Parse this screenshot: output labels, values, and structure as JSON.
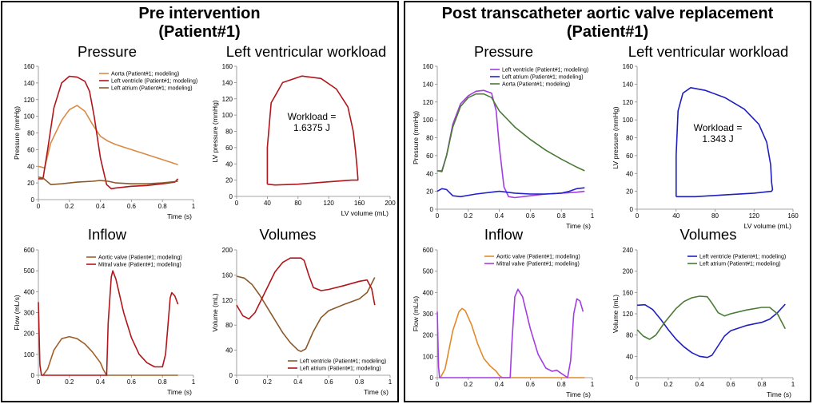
{
  "headings": {
    "pre": "Pre intervention\n(Patient#1)",
    "post": "Post transcatheter aortic valve replacement\n(Patient#1)"
  },
  "chart_data": [
    {
      "id": "pre-pressure",
      "type": "line",
      "title": "Pressure",
      "xlabel": "Time (s)",
      "ylabel": "Pressure (mmHg)",
      "xlim": [
        0,
        1
      ],
      "ylim": [
        0,
        160
      ],
      "xticks": [
        0,
        0.2,
        0.4,
        0.6,
        0.8,
        1
      ],
      "yticks": [
        0,
        20,
        40,
        60,
        80,
        100,
        120,
        140,
        160
      ],
      "series": [
        {
          "name": "Aorta (Patient#1; modeling)",
          "color": "#d98a45",
          "x": [
            0,
            0.04,
            0.08,
            0.15,
            0.2,
            0.25,
            0.3,
            0.35,
            0.4,
            0.45,
            0.5,
            0.6,
            0.7,
            0.8,
            0.9
          ],
          "y": [
            40,
            38,
            68,
            95,
            108,
            113,
            106,
            90,
            76,
            70,
            66,
            60,
            54,
            48,
            42
          ]
        },
        {
          "name": "Left ventricle (Patient#1; modeling)",
          "color": "#b0161c",
          "x": [
            0,
            0.03,
            0.06,
            0.1,
            0.15,
            0.2,
            0.25,
            0.3,
            0.33,
            0.36,
            0.4,
            0.44,
            0.47,
            0.5,
            0.6,
            0.7,
            0.8,
            0.88,
            0.9
          ],
          "y": [
            25,
            25,
            60,
            110,
            140,
            148,
            147,
            142,
            130,
            100,
            50,
            18,
            13,
            14,
            16,
            17,
            19,
            21,
            25
          ]
        },
        {
          "name": "Left atrium (Patient#1; modeling)",
          "color": "#8a5a2b",
          "x": [
            0,
            0.03,
            0.08,
            0.15,
            0.25,
            0.35,
            0.4,
            0.45,
            0.5,
            0.6,
            0.7,
            0.8,
            0.9
          ],
          "y": [
            27,
            26,
            18,
            19,
            21,
            22,
            23,
            22,
            20,
            19,
            19,
            20,
            22
          ]
        }
      ],
      "legend": "top-center"
    },
    {
      "id": "pre-workload",
      "type": "line",
      "title": "Left ventricular workload",
      "xlabel": "LV volume (mL)",
      "ylabel": "LV pressure (mmHg)",
      "xlim": [
        0,
        200
      ],
      "ylim": [
        0,
        160
      ],
      "xticks": [
        0,
        40,
        80,
        120,
        160,
        200
      ],
      "yticks": [
        0,
        20,
        40,
        60,
        80,
        100,
        120,
        140,
        160
      ],
      "annotation": "Workload =\n1.6375 J",
      "series": [
        {
          "name": "PV loop",
          "color": "#b0161c",
          "x": [
            40,
            40,
            45,
            60,
            85,
            110,
            130,
            145,
            152,
            155,
            157,
            158,
            158,
            150,
            120,
            80,
            50,
            40
          ],
          "y": [
            15,
            60,
            115,
            140,
            148,
            145,
            132,
            110,
            80,
            55,
            35,
            22,
            20,
            20,
            18,
            15,
            14,
            15
          ]
        }
      ]
    },
    {
      "id": "pre-inflow",
      "type": "line",
      "title": "Inflow",
      "xlabel": "Time (s)",
      "ylabel": "Flow (mL/s)",
      "xlim": [
        0,
        1
      ],
      "ylim": [
        0,
        600
      ],
      "xticks": [
        0,
        0.2,
        0.4,
        0.6,
        0.8,
        1
      ],
      "yticks": [
        0,
        100,
        200,
        300,
        400,
        500,
        600
      ],
      "series": [
        {
          "name": "Aortic valve (Patient#1; modeling)",
          "color": "#a0602a",
          "x": [
            0.03,
            0.06,
            0.1,
            0.15,
            0.2,
            0.25,
            0.3,
            0.35,
            0.4,
            0.42,
            0.44,
            0.9
          ],
          "y": [
            0,
            30,
            120,
            175,
            185,
            175,
            150,
            110,
            60,
            25,
            0,
            0
          ]
        },
        {
          "name": "Mitral valve (Patient#1; modeling)",
          "color": "#b0161c",
          "x": [
            0,
            0.01,
            0.02,
            0.03,
            0.44,
            0.45,
            0.47,
            0.48,
            0.5,
            0.55,
            0.6,
            0.65,
            0.7,
            0.75,
            0.8,
            0.82,
            0.85,
            0.86,
            0.88,
            0.9
          ],
          "y": [
            350,
            50,
            0,
            0,
            0,
            250,
            470,
            500,
            460,
            300,
            180,
            100,
            60,
            40,
            40,
            100,
            370,
            395,
            380,
            340
          ]
        }
      ],
      "legend": "top-center"
    },
    {
      "id": "pre-volumes",
      "type": "line",
      "title": "Volumes",
      "xlabel": "Time (s)",
      "ylabel": "Volume (mL)",
      "xlim": [
        0,
        1
      ],
      "ylim": [
        0,
        200
      ],
      "xticks": [
        0,
        0.2,
        0.4,
        0.6,
        0.8,
        1
      ],
      "yticks": [
        0,
        40,
        80,
        120,
        160,
        200
      ],
      "series": [
        {
          "name": "Left ventricle (Patient#1; modeling)",
          "color": "#8a5a2b",
          "x": [
            0,
            0.05,
            0.1,
            0.15,
            0.2,
            0.25,
            0.3,
            0.35,
            0.4,
            0.42,
            0.45,
            0.5,
            0.55,
            0.6,
            0.7,
            0.8,
            0.85,
            0.9
          ],
          "y": [
            158,
            155,
            145,
            128,
            108,
            88,
            68,
            52,
            40,
            38,
            42,
            70,
            92,
            103,
            113,
            122,
            132,
            156
          ]
        },
        {
          "name": "Left atrium (Patient#1; modeling)",
          "color": "#b0161c",
          "x": [
            0,
            0.04,
            0.08,
            0.12,
            0.18,
            0.25,
            0.3,
            0.35,
            0.42,
            0.44,
            0.47,
            0.5,
            0.55,
            0.6,
            0.7,
            0.8,
            0.85,
            0.88,
            0.9
          ],
          "y": [
            112,
            95,
            90,
            100,
            130,
            165,
            180,
            187,
            187,
            183,
            160,
            140,
            135,
            137,
            143,
            150,
            152,
            138,
            112
          ]
        }
      ],
      "legend": "bottom-center"
    },
    {
      "id": "post-pressure",
      "type": "line",
      "title": "Pressure",
      "xlabel": "Time (s)",
      "ylabel": "Pressure (mmHg)",
      "xlim": [
        0,
        1
      ],
      "ylim": [
        0,
        160
      ],
      "xticks": [
        0,
        0.2,
        0.4,
        0.6,
        0.8,
        1
      ],
      "yticks": [
        0,
        20,
        40,
        60,
        80,
        100,
        120,
        140,
        160
      ],
      "series": [
        {
          "name": "Left ventricle (Patient#1; modeling)",
          "color": "#a23ee0",
          "x": [
            0,
            0.03,
            0.06,
            0.1,
            0.15,
            0.2,
            0.25,
            0.3,
            0.35,
            0.38,
            0.4,
            0.43,
            0.46,
            0.5,
            0.6,
            0.7,
            0.8,
            0.9,
            0.95
          ],
          "y": [
            43,
            43,
            60,
            95,
            118,
            127,
            132,
            133,
            130,
            110,
            70,
            25,
            14,
            13,
            15,
            17,
            18,
            19,
            20
          ]
        },
        {
          "name": "Left atrium (Patient#1; modeling)",
          "color": "#2222cc",
          "x": [
            0,
            0.03,
            0.06,
            0.1,
            0.15,
            0.25,
            0.35,
            0.4,
            0.45,
            0.5,
            0.6,
            0.7,
            0.8,
            0.85,
            0.9,
            0.95
          ],
          "y": [
            20,
            23,
            22,
            15,
            14,
            17,
            19,
            20,
            19,
            18,
            17,
            17,
            18,
            20,
            23,
            24
          ]
        },
        {
          "name": "Aorta (Patient#1; modeling)",
          "color": "#4a7a35",
          "x": [
            0,
            0.03,
            0.06,
            0.1,
            0.15,
            0.2,
            0.25,
            0.3,
            0.35,
            0.4,
            0.5,
            0.6,
            0.7,
            0.8,
            0.9,
            0.95
          ],
          "y": [
            43,
            42,
            60,
            92,
            115,
            125,
            129,
            129,
            125,
            110,
            92,
            78,
            66,
            56,
            47,
            43
          ]
        }
      ],
      "legend": "top-center"
    },
    {
      "id": "post-workload",
      "type": "line",
      "title": "Left ventricular workload",
      "xlabel": "LV volume (mL)",
      "ylabel": "LV pressure (mmHg)",
      "xlim": [
        0,
        160
      ],
      "ylim": [
        0,
        160
      ],
      "xticks": [
        0,
        40,
        80,
        120,
        160
      ],
      "yticks": [
        0,
        20,
        40,
        60,
        80,
        100,
        120,
        140,
        160
      ],
      "annotation": "Workload =\n1.343 J",
      "series": [
        {
          "name": "PV loop",
          "color": "#1f1fbf",
          "x": [
            40,
            40,
            42,
            47,
            55,
            70,
            90,
            110,
            125,
            133,
            137,
            138,
            139,
            138,
            120,
            90,
            60,
            45,
            40
          ],
          "y": [
            14,
            60,
            110,
            130,
            136,
            133,
            125,
            112,
            95,
            75,
            50,
            30,
            22,
            20,
            18,
            16,
            14,
            14,
            14
          ]
        }
      ]
    },
    {
      "id": "post-inflow",
      "type": "line",
      "title": "Inflow",
      "xlabel": "Time (s)",
      "ylabel": "Flow (mL/s)",
      "xlim": [
        0,
        1
      ],
      "ylim": [
        0,
        600
      ],
      "xticks": [
        0,
        0.2,
        0.4,
        0.6,
        0.8,
        1
      ],
      "yticks": [
        0,
        100,
        200,
        300,
        400,
        500,
        600
      ],
      "series": [
        {
          "name": "Aortic valve (Patient#1; modeling)",
          "color": "#e08a2c",
          "x": [
            0.02,
            0.05,
            0.1,
            0.14,
            0.16,
            0.18,
            0.22,
            0.26,
            0.3,
            0.34,
            0.38,
            0.4,
            0.42,
            0.95
          ],
          "y": [
            0,
            40,
            220,
            310,
            325,
            315,
            250,
            160,
            90,
            55,
            30,
            10,
            0,
            0
          ]
        },
        {
          "name": "Mitral valve (Patient#1; modeling)",
          "color": "#a23ee0",
          "x": [
            0,
            0.008,
            0.015,
            0.02,
            0.47,
            0.48,
            0.5,
            0.52,
            0.55,
            0.6,
            0.65,
            0.7,
            0.74,
            0.77,
            0.8,
            0.84,
            0.86,
            0.88,
            0.9,
            0.92,
            0.94
          ],
          "y": [
            310,
            50,
            0,
            0,
            0,
            150,
            380,
            415,
            380,
            230,
            110,
            45,
            30,
            35,
            20,
            0,
            80,
            300,
            370,
            360,
            310
          ]
        }
      ],
      "legend": "top-center"
    },
    {
      "id": "post-volumes",
      "type": "line",
      "title": "Volumes",
      "xlabel": "Time (s)",
      "ylabel": "Volume (mL)",
      "xlim": [
        0,
        1
      ],
      "ylim": [
        0,
        240
      ],
      "xticks": [
        0,
        0.2,
        0.4,
        0.6,
        0.8,
        1
      ],
      "yticks": [
        0,
        40,
        80,
        120,
        160,
        200,
        240
      ],
      "series": [
        {
          "name": "Left ventricle (Patient#1; modeling)",
          "color": "#1f1fbf",
          "x": [
            0,
            0.05,
            0.1,
            0.15,
            0.2,
            0.25,
            0.3,
            0.35,
            0.4,
            0.45,
            0.48,
            0.52,
            0.56,
            0.6,
            0.7,
            0.8,
            0.85,
            0.9,
            0.95
          ],
          "y": [
            136,
            137,
            128,
            110,
            90,
            72,
            58,
            47,
            40,
            38,
            42,
            60,
            78,
            88,
            98,
            104,
            110,
            122,
            138
          ]
        },
        {
          "name": "Left atrium (Patient#1; modeling)",
          "color": "#4a7a35",
          "x": [
            0,
            0.04,
            0.08,
            0.12,
            0.18,
            0.25,
            0.3,
            0.35,
            0.4,
            0.45,
            0.48,
            0.52,
            0.56,
            0.6,
            0.7,
            0.8,
            0.85,
            0.9,
            0.95
          ],
          "y": [
            90,
            78,
            72,
            80,
            105,
            130,
            143,
            150,
            153,
            152,
            140,
            122,
            116,
            120,
            127,
            132,
            132,
            120,
            92
          ]
        }
      ],
      "legend": "top-center"
    }
  ]
}
